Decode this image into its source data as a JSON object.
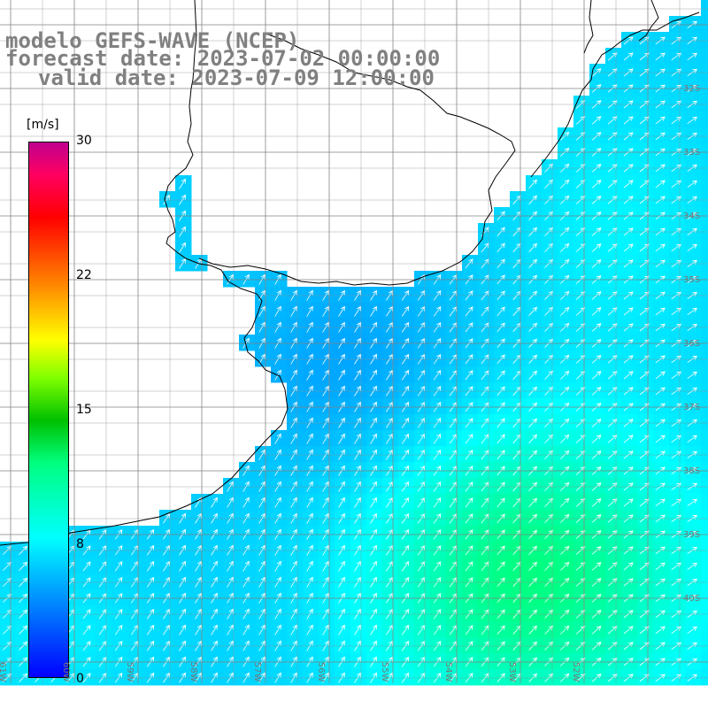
{
  "title": {
    "line1": "modelo GEFS-WAVE (NCEP)",
    "line2": "forecast date: 2023-07-02 00:00:00",
    "line3": "valid date: 2023-07-09 12:00:00"
  },
  "colorbar": {
    "unit": "[m/s]",
    "ticks": [
      "30",
      "22",
      "15",
      "8",
      "0"
    ],
    "colors": [
      "#0000ff",
      "#0080ff",
      "#00ffff",
      "#00ff80",
      "#00c000",
      "#ffff00",
      "#ff8000",
      "#ff0000",
      "#c00090"
    ]
  },
  "lat_labels": [
    "32S",
    "33S",
    "34S",
    "35S",
    "36S",
    "37S",
    "38S",
    "39S",
    "40S"
  ],
  "lon_labels": [
    "61W",
    "60W",
    "59W",
    "58W",
    "57W",
    "56W",
    "55W",
    "54W",
    "53W",
    "52W"
  ],
  "colors": {
    "land": "#ffffff",
    "grid": "#808080",
    "coast": "#000000",
    "arrow": "#ffffff"
  }
}
